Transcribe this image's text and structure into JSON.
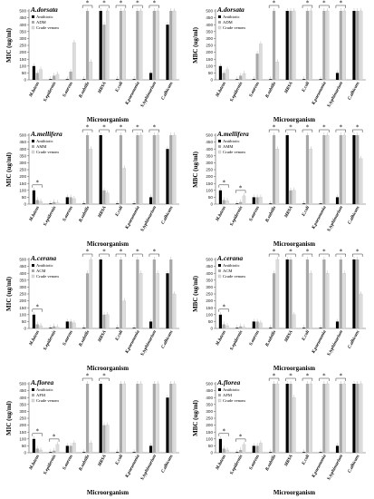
{
  "figure": {
    "categories": [
      "M.luteus",
      "S.epidermis",
      "S.aureus",
      "B.subtilis",
      "MRSA",
      "E.coli",
      "K.pneumonia",
      "S.typhimurium",
      "C.albicans"
    ],
    "xlabel": "Microorganism",
    "bar_colors": [
      "#000000",
      "#a8a8a8",
      "#dcdcdc"
    ]
  },
  "chart_data": [
    {
      "type": "bar",
      "title": "A.dorsata",
      "ylabel": "MIC (ug/ml)",
      "yticks": [
        0,
        50,
        100,
        150,
        200,
        250,
        300,
        350,
        400,
        450,
        500
      ],
      "ylim": [
        0,
        500
      ],
      "legend_position": "top-left",
      "series": [
        {
          "name": "Antibiotic",
          "values": [
            100,
            5,
            5,
            5,
            500,
            5,
            5,
            50,
            400
          ]
        },
        {
          "name": "ADM",
          "values": [
            50,
            30,
            60,
            500,
            400,
            500,
            500,
            500,
            500
          ]
        },
        {
          "name": "Crude venom",
          "values": [
            75,
            40,
            270,
            130,
            500,
            500,
            500,
            500,
            500
          ]
        }
      ],
      "markers": [
        {
          "label": "*",
          "category": 3
        },
        {
          "label": "*",
          "category": 4
        },
        {
          "label": "*",
          "category": 5
        },
        {
          "label": "*",
          "category": 6
        },
        {
          "label": "*",
          "category": 7
        }
      ]
    },
    {
      "type": "bar",
      "title": "A.dorsata",
      "ylabel": "MBC (ug/ml)",
      "yticks": [
        0,
        50,
        100,
        150,
        200,
        250,
        300,
        350,
        400,
        450,
        500
      ],
      "ylim": [
        0,
        500
      ],
      "legend_position": "top-left",
      "series": [
        {
          "name": "Antibiotic",
          "values": [
            100,
            5,
            5,
            5,
            500,
            5,
            5,
            50,
            500
          ]
        },
        {
          "name": "ADM",
          "values": [
            50,
            30,
            190,
            500,
            500,
            500,
            500,
            500,
            500
          ]
        },
        {
          "name": "Crude venom",
          "values": [
            75,
            45,
            260,
            130,
            500,
            500,
            500,
            500,
            500
          ]
        }
      ],
      "markers": [
        {
          "label": "*",
          "category": 3
        },
        {
          "label": "*",
          "category": 5
        },
        {
          "label": "*",
          "category": 6
        },
        {
          "label": "*",
          "category": 7
        }
      ]
    },
    {
      "type": "bar",
      "title": "A.mellifera",
      "ylabel": "MIC (ug/ml)",
      "yticks": [
        0,
        50,
        100,
        150,
        200,
        250,
        300,
        350,
        400,
        450,
        500
      ],
      "ylim": [
        0,
        500
      ],
      "legend_position": "top-left",
      "series": [
        {
          "name": "Antibiotic",
          "values": [
            100,
            5,
            50,
            5,
            500,
            5,
            5,
            50,
            400
          ]
        },
        {
          "name": "AMM",
          "values": [
            30,
            15,
            50,
            500,
            100,
            500,
            500,
            500,
            500
          ]
        },
        {
          "name": "Crude venom",
          "values": [
            20,
            10,
            40,
            400,
            80,
            260,
            500,
            500,
            500
          ]
        }
      ],
      "markers": [
        {
          "label": "*",
          "category": 0
        },
        {
          "label": "*",
          "category": 3
        },
        {
          "label": "*",
          "category": 4
        },
        {
          "label": "*",
          "category": 5
        },
        {
          "label": "*",
          "category": 6
        },
        {
          "label": "*",
          "category": 7
        }
      ]
    },
    {
      "type": "bar",
      "title": "A.mellifera",
      "ylabel": "MBC (ug/ml)",
      "yticks": [
        0,
        50,
        100,
        150,
        200,
        250,
        300,
        350,
        400,
        450,
        500
      ],
      "ylim": [
        0,
        500
      ],
      "legend_position": "top-left",
      "series": [
        {
          "name": "Antibiotic",
          "values": [
            100,
            5,
            50,
            5,
            500,
            5,
            5,
            50,
            500
          ]
        },
        {
          "name": "AMM",
          "values": [
            30,
            15,
            50,
            500,
            100,
            500,
            500,
            500,
            500
          ]
        },
        {
          "name": "Crude venom",
          "values": [
            25,
            60,
            50,
            400,
            100,
            400,
            500,
            500,
            330
          ]
        }
      ],
      "markers": [
        {
          "label": "*",
          "category": 0
        },
        {
          "label": "*",
          "category": 1
        },
        {
          "label": "*",
          "category": 3
        },
        {
          "label": "*",
          "category": 4
        },
        {
          "label": "*",
          "category": 5
        },
        {
          "label": "*",
          "category": 6
        },
        {
          "label": "*",
          "category": 7
        },
        {
          "label": "*",
          "category": 8
        }
      ]
    },
    {
      "type": "bar",
      "title": "A.cerana",
      "ylabel": "MIC (ug/ml)",
      "yticks": [
        0,
        50,
        100,
        150,
        200,
        250,
        300,
        350,
        400,
        450,
        500
      ],
      "ylim": [
        0,
        500
      ],
      "legend_position": "top-left",
      "series": [
        {
          "name": "Antibiotic",
          "values": [
            100,
            5,
            50,
            5,
            500,
            5,
            5,
            50,
            400
          ]
        },
        {
          "name": "ACM",
          "values": [
            30,
            15,
            50,
            400,
            100,
            500,
            500,
            500,
            500
          ]
        },
        {
          "name": "Crude venom",
          "values": [
            20,
            10,
            40,
            500,
            100,
            200,
            400,
            400,
            250
          ]
        }
      ],
      "markers": [
        {
          "label": "*",
          "category": 0
        },
        {
          "label": "*",
          "category": 3
        },
        {
          "label": "*",
          "category": 4
        },
        {
          "label": "*",
          "category": 5
        },
        {
          "label": "*",
          "category": 6
        },
        {
          "label": "*",
          "category": 7
        }
      ]
    },
    {
      "type": "bar",
      "title": "A.cerana",
      "ylabel": "MBC (ug/ml)",
      "yticks": [
        0,
        50,
        100,
        150,
        200,
        250,
        300,
        350,
        400,
        450,
        500
      ],
      "ylim": [
        0,
        500
      ],
      "legend_position": "top-left",
      "series": [
        {
          "name": "Antibiotic",
          "values": [
            100,
            5,
            50,
            5,
            500,
            5,
            5,
            50,
            500
          ]
        },
        {
          "name": "ACM",
          "values": [
            30,
            15,
            50,
            400,
            500,
            500,
            500,
            500,
            500
          ]
        },
        {
          "name": "Crude venom",
          "values": [
            20,
            10,
            40,
            500,
            100,
            400,
            400,
            400,
            250
          ]
        }
      ],
      "markers": [
        {
          "label": "*",
          "category": 0
        },
        {
          "label": "*",
          "category": 3
        },
        {
          "label": "*",
          "category": 4
        },
        {
          "label": "*",
          "category": 5
        },
        {
          "label": "*",
          "category": 6
        },
        {
          "label": "*",
          "category": 7
        },
        {
          "label": "*",
          "category": 8
        }
      ]
    },
    {
      "type": "bar",
      "title": "A.florea",
      "ylabel": "MIC (ug/ml)",
      "yticks": [
        0,
        50,
        100,
        150,
        200,
        250,
        300,
        350,
        400,
        450,
        500
      ],
      "ylim": [
        0,
        500
      ],
      "legend_position": "top-left",
      "series": [
        {
          "name": "Antibiotic",
          "values": [
            100,
            5,
            50,
            5,
            500,
            5,
            5,
            50,
            400
          ]
        },
        {
          "name": "AFM",
          "values": [
            30,
            15,
            50,
            500,
            200,
            500,
            500,
            500,
            500
          ]
        },
        {
          "name": "Crude venom",
          "values": [
            20,
            60,
            70,
            70,
            200,
            500,
            500,
            500,
            500
          ]
        }
      ],
      "markers": [
        {
          "label": "*",
          "category": 0
        },
        {
          "label": "*",
          "category": 1
        },
        {
          "label": "*",
          "category": 3
        },
        {
          "label": "*",
          "category": 4
        }
      ]
    },
    {
      "type": "bar",
      "title": "A.florea",
      "ylabel": "MBC (ug/ml)",
      "yticks": [
        0,
        50,
        100,
        150,
        200,
        250,
        300,
        350,
        400,
        450,
        500
      ],
      "ylim": [
        0,
        500
      ],
      "legend_position": "top-left",
      "series": [
        {
          "name": "Antibiotic",
          "values": [
            100,
            5,
            50,
            5,
            500,
            5,
            5,
            50,
            500
          ]
        },
        {
          "name": "AFM",
          "values": [
            30,
            20,
            50,
            500,
            500,
            500,
            500,
            500,
            500
          ]
        },
        {
          "name": "Crude venom",
          "values": [
            20,
            60,
            70,
            500,
            400,
            500,
            500,
            500,
            500
          ]
        }
      ],
      "markers": [
        {
          "label": "*",
          "category": 0
        },
        {
          "label": "*",
          "category": 1
        },
        {
          "label": "*",
          "category": 3
        },
        {
          "label": "*",
          "category": 4
        },
        {
          "label": "*",
          "category": 5
        },
        {
          "label": "*",
          "category": 6
        },
        {
          "label": "*",
          "category": 7
        }
      ]
    }
  ]
}
